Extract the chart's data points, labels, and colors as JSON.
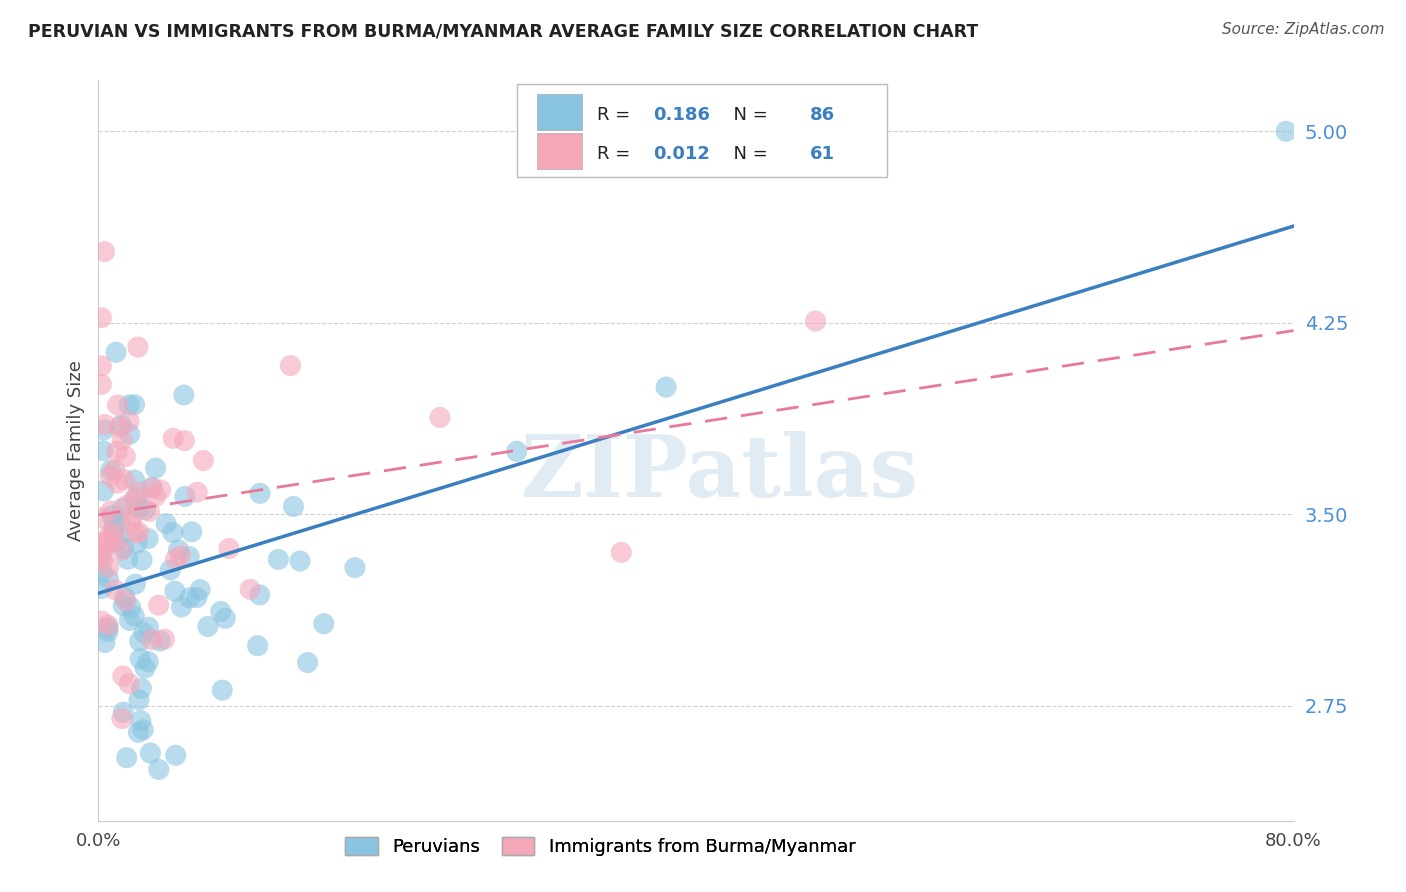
{
  "title": "PERUVIAN VS IMMIGRANTS FROM BURMA/MYANMAR AVERAGE FAMILY SIZE CORRELATION CHART",
  "source": "Source: ZipAtlas.com",
  "ylabel": "Average Family Size",
  "xlim": [
    0.0,
    0.8
  ],
  "ylim": [
    2.3,
    5.2
  ],
  "yticks": [
    2.75,
    3.5,
    4.25,
    5.0
  ],
  "xticks": [
    0.0,
    0.8
  ],
  "xticklabels": [
    "0.0%",
    "80.0%"
  ],
  "yticklabels": [
    "2.75",
    "3.50",
    "4.25",
    "5.00"
  ],
  "blue_color": "#89c4e1",
  "pink_color": "#f4a7b9",
  "blue_line_color": "#3a7fc1",
  "pink_line_color": "#e8799a",
  "R_blue": 0.186,
  "N_blue": 86,
  "R_pink": 0.012,
  "N_pink": 61,
  "watermark": "ZIPatlas",
  "background_color": "#ffffff",
  "legend_label_blue": "Peruvians",
  "legend_label_pink": "Immigrants from Burma/Myanmar",
  "tick_color": "#4a90d9",
  "grid_color": "#d0d0d0"
}
